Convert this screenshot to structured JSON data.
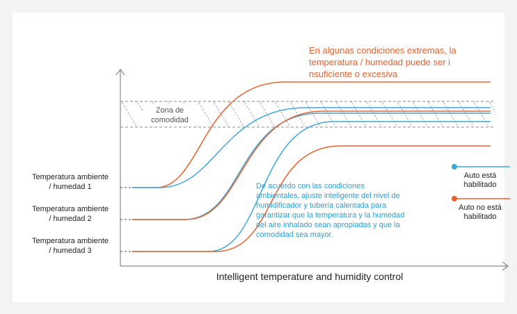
{
  "title": "Intelligent temperature and humidity control",
  "zone_label": [
    "Zona de",
    "comodidad"
  ],
  "extreme_note": [
    "En algunas condiciones extremas, la",
    "temperatura / humedad puede ser i",
    "nsuficiente o excesiva"
  ],
  "auto_note": [
    "De acuerdo con las condiciones",
    "ambientales, ajuste inteligente del nivel de",
    "humidificador y tubería calentada para",
    "garantizar que la temperatura y la humedad",
    "del aire inhalado sean apropiadas y que la",
    "comodidad sea mayor."
  ],
  "ambient_labels": [
    [
      "Temperatura ambiente",
      "/ humedad 1"
    ],
    [
      "Temperatura ambiente",
      "/ humedad 2"
    ],
    [
      "Temperatura ambiente",
      "/ humedad 3"
    ]
  ],
  "legend": [
    [
      "Auto está",
      "habilitado"
    ],
    [
      "Auto no está",
      "habilitado"
    ]
  ]
}
